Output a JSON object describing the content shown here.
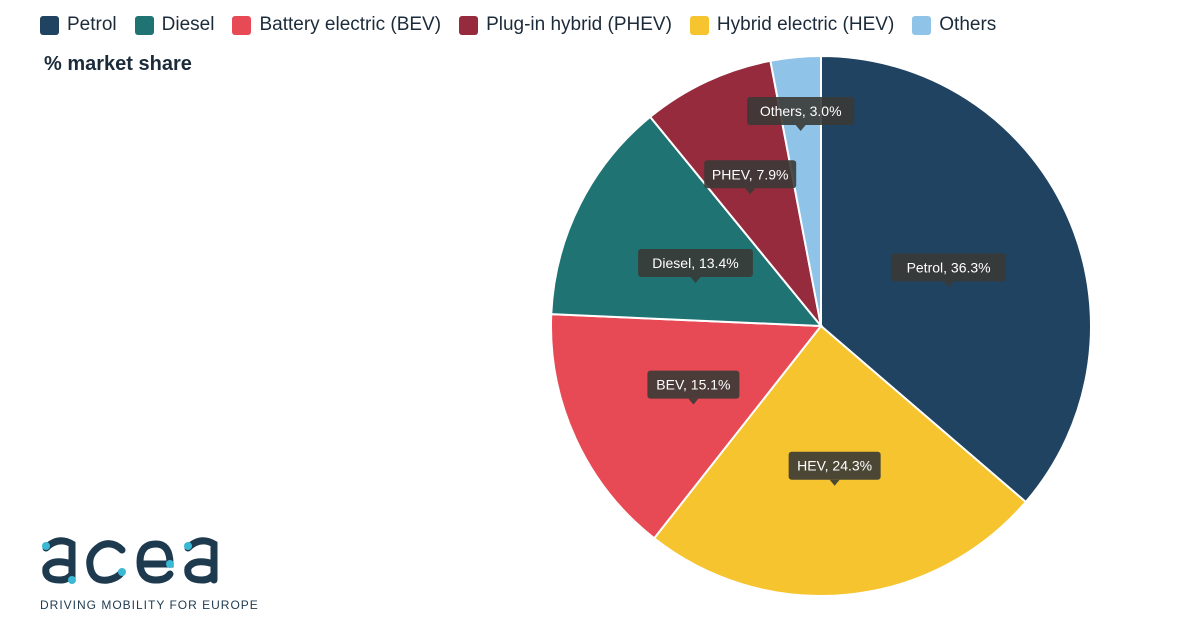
{
  "legend": [
    {
      "label": "Petrol",
      "color": "#1f4361"
    },
    {
      "label": "Diesel",
      "color": "#1f7373"
    },
    {
      "label": "Battery electric (BEV)",
      "color": "#e84a55"
    },
    {
      "label": "Plug-in hybrid (PHEV)",
      "color": "#962b3d"
    },
    {
      "label": "Hybrid electric (HEV)",
      "color": "#f6c42e"
    },
    {
      "label": "Others",
      "color": "#8fc3e8"
    }
  ],
  "subtitle": "% market share",
  "logo": {
    "text": "acea",
    "tagline": "DRIVING MOBILITY FOR EUROPE"
  },
  "chart_data": {
    "type": "pie",
    "title": "",
    "slices": [
      {
        "name": "Petrol",
        "label": "Petrol, 36.3%",
        "value": 36.3,
        "color": "#1f4361"
      },
      {
        "name": "HEV",
        "label": "HEV, 24.3%",
        "value": 24.3,
        "color": "#f6c42e"
      },
      {
        "name": "BEV",
        "label": "BEV, 15.1%",
        "value": 15.1,
        "color": "#e84a55"
      },
      {
        "name": "Diesel",
        "label": "Diesel, 13.4%",
        "value": 13.4,
        "color": "#1f7373"
      },
      {
        "name": "PHEV",
        "label": "PHEV, 7.9%",
        "value": 7.9,
        "color": "#962b3d"
      },
      {
        "name": "Others",
        "label": "Others, 3.0%",
        "value": 3.0,
        "color": "#8fc3e8"
      }
    ]
  }
}
